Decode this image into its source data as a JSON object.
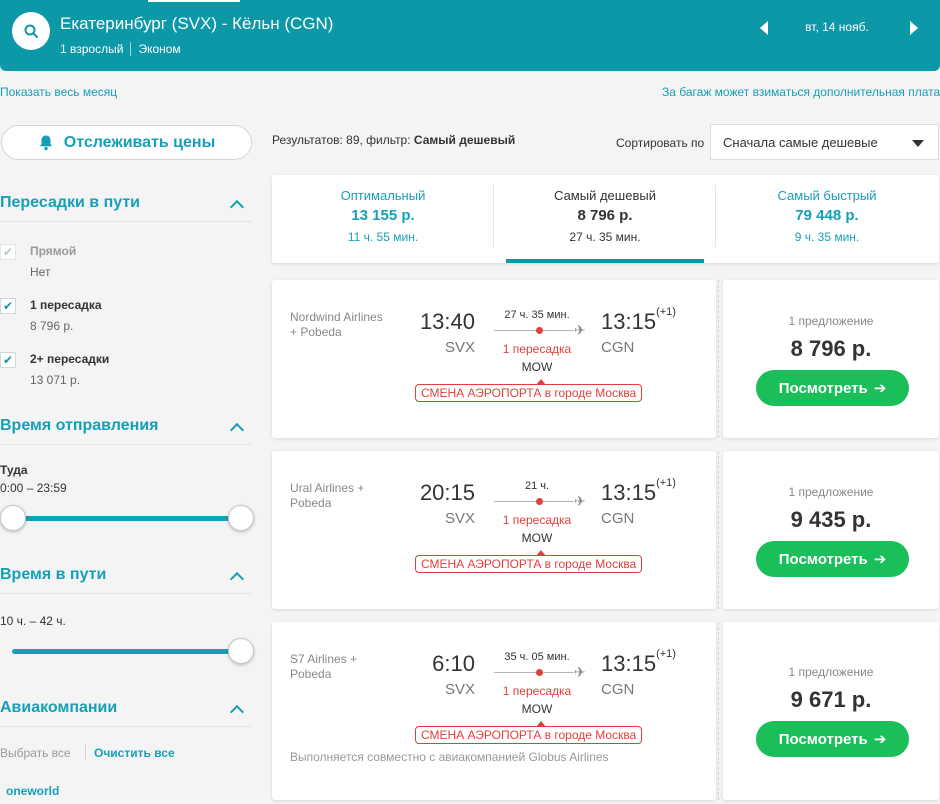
{
  "header": {
    "route": "Екатеринбург (SVX) - Кёльн (CGN)",
    "passengers": "1 взрослый",
    "cabin": "Эконом",
    "date": "вт, 14 нояб."
  },
  "links": {
    "show_month": "Показать весь месяц",
    "baggage_note": "За багаж может взиматься дополнительная плата"
  },
  "track_button": "Отслеживать цены",
  "filters": {
    "stops": {
      "title": "Пересадки в пути",
      "options": [
        {
          "label": "Прямой",
          "sub": "Нет",
          "checked": true,
          "disabled": true
        },
        {
          "label": "1 пересадка",
          "sub": "8 796 р.",
          "checked": true,
          "disabled": false
        },
        {
          "label": "2+ пересадки",
          "sub": "13 071 р.",
          "checked": true,
          "disabled": false
        }
      ]
    },
    "departure": {
      "title": "Время отправления",
      "direction": "Туда",
      "range": "0:00 – 23:59"
    },
    "duration": {
      "title": "Время в пути",
      "range": "10 ч. – 42 ч."
    },
    "airlines": {
      "title": "Авиакомпании",
      "select_all": "Выбрать все",
      "clear_all": "Очистить все",
      "alliance": "oneworld"
    }
  },
  "results": {
    "prefix": "Результатов: 89, фильтр: ",
    "filter": "Самый дешевый"
  },
  "sort": {
    "label": "Сортировать по",
    "value": "Сначала самые дешевые"
  },
  "tabs": [
    {
      "title": "Оптимальный",
      "price": "13 155 р.",
      "duration": "11 ч. 55 мин."
    },
    {
      "title": "Самый дешевый",
      "price": "8 796 р.",
      "duration": "27 ч. 35 мин."
    },
    {
      "title": "Самый быстрый",
      "price": "79 448 р.",
      "duration": "9 ч. 35 мин."
    }
  ],
  "flights": [
    {
      "airline": "Nordwind Airlines + Pobeda",
      "dep_time": "13:40",
      "dep_code": "SVX",
      "arr_time": "13:15",
      "arr_plus": "(+1)",
      "arr_code": "CGN",
      "duration": "27 ч. 35 мин.",
      "stops": "1 пересадка",
      "via": "MOW",
      "warning": "СМЕНА АЭРОПОРТА в городе Москва",
      "note": "",
      "offers": "1 предложение",
      "price": "8 796 р.",
      "button": "Посмотреть"
    },
    {
      "airline": "Ural Airlines + Pobeda",
      "dep_time": "20:15",
      "dep_code": "SVX",
      "arr_time": "13:15",
      "arr_plus": "(+1)",
      "arr_code": "CGN",
      "duration": "21 ч.",
      "stops": "1 пересадка",
      "via": "MOW",
      "warning": "СМЕНА АЭРОПОРТА в городе Москва",
      "note": "",
      "offers": "1 предложение",
      "price": "9 435 р.",
      "button": "Посмотреть"
    },
    {
      "airline": "S7 Airlines + Pobeda",
      "dep_time": "6:10",
      "dep_code": "SVX",
      "arr_time": "13:15",
      "arr_plus": "(+1)",
      "arr_code": "CGN",
      "duration": "35 ч. 05 мин.",
      "stops": "1 пересадка",
      "via": "MOW",
      "warning": "СМЕНА АЭРОПОРТА в городе Москва",
      "note": "Выполняется совместно с авиакомпанией Globus Airlines",
      "offers": "1 предложение",
      "price": "9 671 р.",
      "button": "Посмотреть"
    }
  ],
  "colors": {
    "brand": "#0d98a8",
    "link": "#16a0b8",
    "cta": "#1bbf5a",
    "warning": "#e0403b"
  },
  "icons": [
    "search-icon",
    "bell-icon",
    "chevron-up-icon",
    "chevron-left-icon",
    "chevron-right-icon",
    "plane-icon",
    "arrow-right-icon",
    "check-icon",
    "caret-down-icon"
  ]
}
